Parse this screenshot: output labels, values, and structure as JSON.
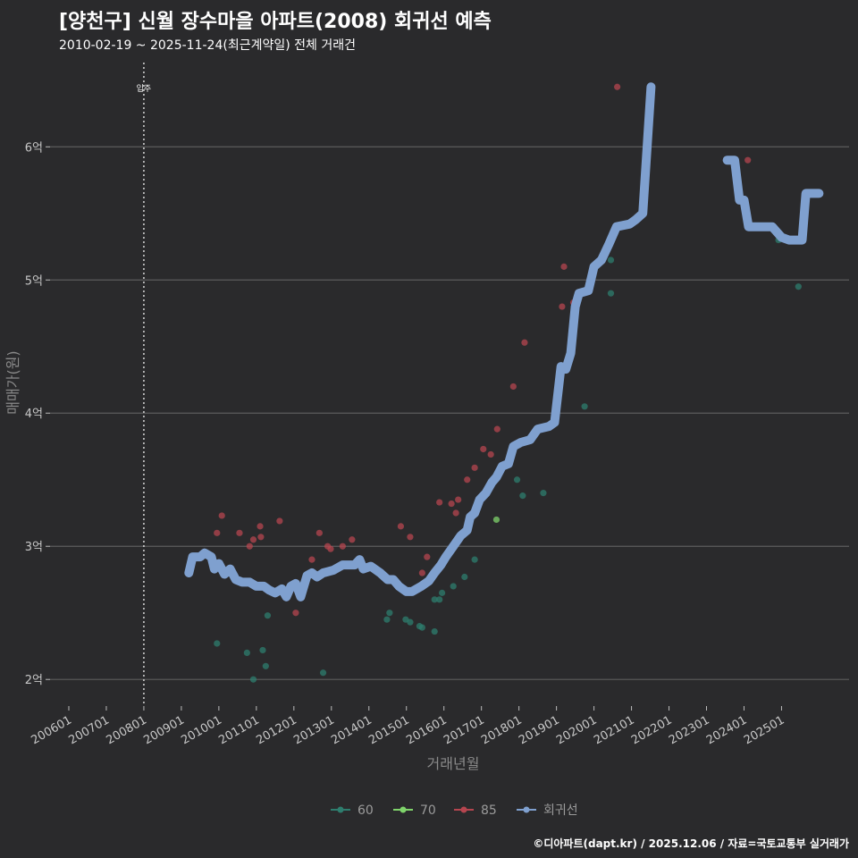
{
  "header": {
    "title": "[양천구] 신월 장수마을 아파트(2008) 회귀선 예측",
    "subtitle": "2010-02-19 ~ 2025-11-24(최근계약일) 전체 거래건"
  },
  "credit": "©디아파트(dapt.kr) / 2025.12.06 / 자료=국토교통부 실거래가",
  "colors": {
    "background": "#2a2a2c",
    "grid": "#5c5c5c",
    "size60": "#2e7d6e",
    "size70": "#7fd36b",
    "size85": "#b5454f",
    "regression": "#7fa0cf"
  },
  "chart_data": {
    "type": "scatter",
    "title": "[양천구] 신월 장수마을 아파트(2008) 회귀선 예측",
    "xlabel": "거래년월",
    "ylabel": "매매가(원)",
    "x_unit": "year (decimal)",
    "y_unit": "억 원",
    "xlim": [
      2005.5,
      2026.8
    ],
    "ylim": [
      1.8,
      6.7
    ],
    "x_ticks": [
      {
        "x": 2006,
        "label": "200601"
      },
      {
        "x": 2007,
        "label": "200701"
      },
      {
        "x": 2008,
        "label": "200801"
      },
      {
        "x": 2009,
        "label": "200901"
      },
      {
        "x": 2010,
        "label": "201001"
      },
      {
        "x": 2011,
        "label": "201101"
      },
      {
        "x": 2012,
        "label": "201201"
      },
      {
        "x": 2013,
        "label": "201301"
      },
      {
        "x": 2014,
        "label": "201401"
      },
      {
        "x": 2015,
        "label": "201501"
      },
      {
        "x": 2016,
        "label": "201601"
      },
      {
        "x": 2017,
        "label": "201701"
      },
      {
        "x": 2018,
        "label": "201801"
      },
      {
        "x": 2019,
        "label": "201901"
      },
      {
        "x": 2020,
        "label": "202001"
      },
      {
        "x": 2021,
        "label": "202101"
      },
      {
        "x": 2022,
        "label": "202201"
      },
      {
        "x": 2023,
        "label": "202301"
      },
      {
        "x": 2024,
        "label": "202401"
      },
      {
        "x": 2025,
        "label": "202501"
      }
    ],
    "y_ticks": [
      {
        "y": 2,
        "label": "2억"
      },
      {
        "y": 3,
        "label": "3억"
      },
      {
        "y": 4,
        "label": "4억"
      },
      {
        "y": 5,
        "label": "5억"
      },
      {
        "y": 6,
        "label": "6억"
      }
    ],
    "annotation": {
      "x": 2008.0,
      "label": "입주"
    },
    "legend": [
      "60",
      "70",
      "85",
      "회귀선"
    ],
    "series": [
      {
        "name": "60",
        "points": [
          [
            2009.95,
            2.27
          ],
          [
            2010.75,
            2.2
          ],
          [
            2010.92,
            2.0
          ],
          [
            2011.17,
            2.22
          ],
          [
            2011.25,
            2.1
          ],
          [
            2011.3,
            2.48
          ],
          [
            2012.78,
            2.05
          ],
          [
            2014.48,
            2.45
          ],
          [
            2014.55,
            2.5
          ],
          [
            2014.98,
            2.45
          ],
          [
            2015.1,
            2.43
          ],
          [
            2015.35,
            2.4
          ],
          [
            2015.42,
            2.39
          ],
          [
            2015.75,
            2.36
          ],
          [
            2015.75,
            2.6
          ],
          [
            2015.88,
            2.6
          ],
          [
            2015.95,
            2.65
          ],
          [
            2016.25,
            2.7
          ],
          [
            2016.55,
            2.77
          ],
          [
            2016.82,
            2.9
          ],
          [
            2017.95,
            3.5
          ],
          [
            2018.1,
            3.38
          ],
          [
            2018.65,
            3.4
          ],
          [
            2019.75,
            4.05
          ],
          [
            2020.45,
            5.15
          ],
          [
            2020.45,
            4.9
          ],
          [
            2024.92,
            5.3
          ],
          [
            2025.45,
            4.95
          ]
        ]
      },
      {
        "name": "70",
        "points": [
          [
            2017.4,
            3.2
          ]
        ]
      },
      {
        "name": "85",
        "points": [
          [
            2009.95,
            3.1
          ],
          [
            2010.08,
            3.23
          ],
          [
            2010.55,
            3.1
          ],
          [
            2010.82,
            3.0
          ],
          [
            2010.92,
            3.05
          ],
          [
            2011.1,
            3.15
          ],
          [
            2011.12,
            3.07
          ],
          [
            2011.62,
            3.19
          ],
          [
            2012.05,
            2.5
          ],
          [
            2012.48,
            2.9
          ],
          [
            2012.68,
            3.1
          ],
          [
            2012.9,
            3.0
          ],
          [
            2012.98,
            2.98
          ],
          [
            2013.3,
            3.0
          ],
          [
            2013.55,
            3.05
          ],
          [
            2014.85,
            3.15
          ],
          [
            2015.1,
            3.07
          ],
          [
            2015.42,
            2.8
          ],
          [
            2015.55,
            2.92
          ],
          [
            2015.88,
            3.33
          ],
          [
            2016.2,
            3.32
          ],
          [
            2016.32,
            3.25
          ],
          [
            2016.38,
            3.35
          ],
          [
            2016.62,
            3.5
          ],
          [
            2016.82,
            3.59
          ],
          [
            2017.05,
            3.73
          ],
          [
            2017.25,
            3.69
          ],
          [
            2017.42,
            3.88
          ],
          [
            2017.85,
            4.2
          ],
          [
            2018.15,
            4.53
          ],
          [
            2019.15,
            4.8
          ],
          [
            2019.2,
            5.1
          ],
          [
            2019.45,
            4.83
          ],
          [
            2020.62,
            6.45
          ],
          [
            2024.1,
            5.9
          ]
        ]
      },
      {
        "name": "회귀선",
        "segments": [
          [
            [
              2009.2,
              2.8
            ],
            [
              2009.3,
              2.92
            ],
            [
              2009.5,
              2.92
            ],
            [
              2009.62,
              2.95
            ],
            [
              2009.8,
              2.92
            ],
            [
              2009.88,
              2.83
            ],
            [
              2010.0,
              2.87
            ],
            [
              2010.15,
              2.79
            ],
            [
              2010.3,
              2.83
            ],
            [
              2010.45,
              2.75
            ],
            [
              2010.62,
              2.73
            ],
            [
              2010.82,
              2.73
            ],
            [
              2011.0,
              2.7
            ],
            [
              2011.2,
              2.7
            ],
            [
              2011.35,
              2.67
            ],
            [
              2011.5,
              2.65
            ],
            [
              2011.68,
              2.68
            ],
            [
              2011.8,
              2.62
            ],
            [
              2011.92,
              2.7
            ],
            [
              2012.05,
              2.72
            ],
            [
              2012.18,
              2.62
            ],
            [
              2012.35,
              2.78
            ],
            [
              2012.48,
              2.8
            ],
            [
              2012.62,
              2.77
            ],
            [
              2012.78,
              2.8
            ],
            [
              2013.05,
              2.82
            ],
            [
              2013.3,
              2.86
            ],
            [
              2013.62,
              2.86
            ],
            [
              2013.75,
              2.9
            ],
            [
              2013.85,
              2.83
            ],
            [
              2014.05,
              2.85
            ],
            [
              2014.3,
              2.8
            ],
            [
              2014.5,
              2.75
            ],
            [
              2014.65,
              2.75
            ],
            [
              2014.8,
              2.7
            ],
            [
              2015.0,
              2.66
            ],
            [
              2015.15,
              2.66
            ],
            [
              2015.4,
              2.7
            ],
            [
              2015.6,
              2.74
            ],
            [
              2015.75,
              2.8
            ],
            [
              2015.92,
              2.86
            ],
            [
              2016.05,
              2.92
            ],
            [
              2016.25,
              3.0
            ],
            [
              2016.45,
              3.08
            ],
            [
              2016.62,
              3.12
            ],
            [
              2016.7,
              3.22
            ],
            [
              2016.82,
              3.25
            ],
            [
              2016.95,
              3.35
            ],
            [
              2017.12,
              3.4
            ],
            [
              2017.28,
              3.48
            ],
            [
              2017.4,
              3.52
            ],
            [
              2017.55,
              3.6
            ],
            [
              2017.72,
              3.62
            ],
            [
              2017.85,
              3.75
            ],
            [
              2018.05,
              3.78
            ],
            [
              2018.3,
              3.8
            ],
            [
              2018.5,
              3.88
            ],
            [
              2018.8,
              3.9
            ],
            [
              2018.95,
              3.93
            ],
            [
              2019.12,
              4.35
            ],
            [
              2019.25,
              4.33
            ],
            [
              2019.38,
              4.45
            ],
            [
              2019.5,
              4.8
            ],
            [
              2019.6,
              4.9
            ],
            [
              2019.85,
              4.92
            ],
            [
              2020.0,
              5.1
            ],
            [
              2020.2,
              5.15
            ],
            [
              2020.4,
              5.27
            ],
            [
              2020.6,
              5.4
            ],
            [
              2020.95,
              5.42
            ],
            [
              2021.1,
              5.45
            ],
            [
              2021.3,
              5.5
            ],
            [
              2021.52,
              6.45
            ]
          ],
          [
            [
              2023.55,
              5.9
            ],
            [
              2023.75,
              5.9
            ],
            [
              2023.88,
              5.6
            ],
            [
              2024.0,
              5.6
            ],
            [
              2024.12,
              5.4
            ],
            [
              2024.75,
              5.4
            ],
            [
              2025.0,
              5.32
            ],
            [
              2025.2,
              5.3
            ],
            [
              2025.55,
              5.3
            ],
            [
              2025.65,
              5.65
            ],
            [
              2026.0,
              5.65
            ]
          ]
        ]
      }
    ]
  }
}
